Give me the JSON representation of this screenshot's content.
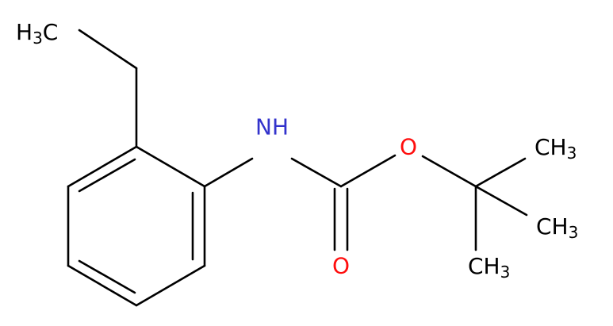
{
  "atoms": [
    {
      "main": "H",
      "sub": "3",
      "end": "C"
    },
    {
      "main": "NH"
    },
    {
      "main": "O"
    },
    {
      "main": "O"
    },
    {
      "main": "CH",
      "sub": "3"
    },
    {
      "main": "CH",
      "sub": "3"
    },
    {
      "main": "CH",
      "sub": "3"
    }
  ]
}
